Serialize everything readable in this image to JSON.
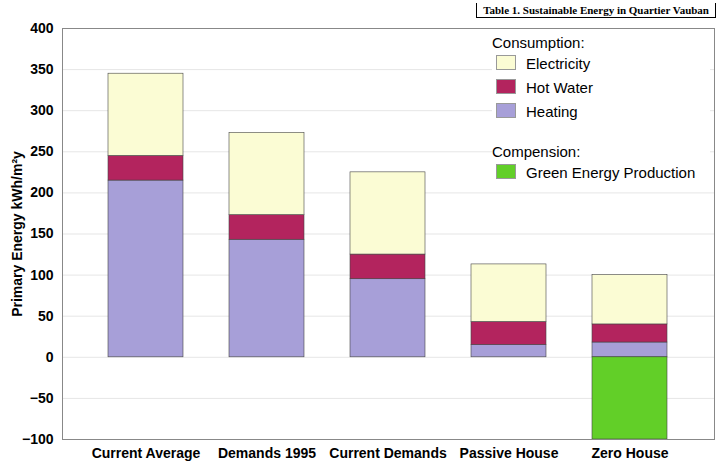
{
  "chart_data": {
    "type": "bar",
    "title": "Table 1.  Sustainable Energy in Quartier Vauban",
    "y_label": "Primary Energy kWh/m²y",
    "categories": [
      "Current Average",
      "Demands 1995",
      "Current Demands",
      "Passive House",
      "Zero House"
    ],
    "series": [
      {
        "name": "Heating",
        "group": "Consumption:",
        "color": "#a79fd8",
        "values": [
          215,
          143,
          95,
          15,
          18
        ]
      },
      {
        "name": "Hot Water",
        "group": "Consumption:",
        "color": "#b3245e",
        "values": [
          30,
          30,
          30,
          28,
          22
        ]
      },
      {
        "name": "Electricity",
        "group": "Consumption:",
        "color": "#fbfcd4",
        "values": [
          100,
          100,
          100,
          70,
          60
        ]
      },
      {
        "name": "Green Energy Production",
        "group": "Compension:",
        "color": "#62cf28",
        "values": [
          null,
          null,
          null,
          null,
          -100
        ]
      }
    ],
    "stacked": true,
    "ylim": [
      -100,
      400
    ],
    "yticks": [
      -100,
      -50,
      0,
      50,
      100,
      150,
      200,
      250,
      300,
      350,
      400
    ],
    "grid": true,
    "legend": "top-right"
  }
}
